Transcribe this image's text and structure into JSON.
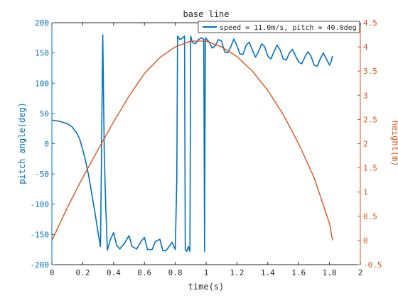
{
  "chart_data": {
    "type": "line",
    "title": "base line",
    "xlabel": "time(s)",
    "ylabel_left": "pitch angle(deg)",
    "ylabel_right": "height(m)",
    "xlim": [
      0,
      2
    ],
    "ylim_left": [
      -200,
      200
    ],
    "ylim_right": [
      -0.5,
      4.5
    ],
    "x_ticks": [
      "0",
      "0.2",
      "0.4",
      "0.6",
      "0.8",
      "1",
      "1.2",
      "1.4",
      "1.6",
      "1.8",
      "2"
    ],
    "y_left_ticks": [
      "-200",
      "-150",
      "-100",
      "-50",
      "0",
      "50",
      "100",
      "150",
      "200"
    ],
    "y_right_ticks": [
      "-0.5",
      "0",
      "0.5",
      "1",
      "1.5",
      "2",
      "2.5",
      "3",
      "3.5",
      "4",
      "4.5"
    ],
    "grid": false,
    "legend_position": "top-right",
    "colors": {
      "pitch": "#0072BD",
      "height": "#D95319",
      "left_axis": "#0072BD",
      "right_axis": "#D95319",
      "axes": "#262626"
    },
    "series": [
      {
        "name": "speed = 11.0m/s, pitch = 40.0deg",
        "axis": "left",
        "points": [
          [
            0.0,
            39
          ],
          [
            0.05,
            37
          ],
          [
            0.1,
            33
          ],
          [
            0.13,
            28
          ],
          [
            0.16,
            18
          ],
          [
            0.18,
            8
          ],
          [
            0.2,
            -10
          ],
          [
            0.22,
            -30
          ],
          [
            0.24,
            -55
          ],
          [
            0.26,
            -85
          ],
          [
            0.28,
            -115
          ],
          [
            0.3,
            -148
          ],
          [
            0.315,
            -170
          ],
          [
            0.32,
            -60
          ],
          [
            0.33,
            180
          ],
          [
            0.34,
            -20
          ],
          [
            0.35,
            -110
          ],
          [
            0.36,
            -176
          ],
          [
            0.38,
            -158
          ],
          [
            0.4,
            -147
          ],
          [
            0.42,
            -168
          ],
          [
            0.44,
            -174
          ],
          [
            0.47,
            -165
          ],
          [
            0.5,
            -152
          ],
          [
            0.52,
            -170
          ],
          [
            0.55,
            -174
          ],
          [
            0.58,
            -161
          ],
          [
            0.6,
            -155
          ],
          [
            0.62,
            -175
          ],
          [
            0.65,
            -175
          ],
          [
            0.67,
            -162
          ],
          [
            0.7,
            -158
          ],
          [
            0.72,
            -177
          ],
          [
            0.74,
            -177
          ],
          [
            0.76,
            -170
          ],
          [
            0.78,
            -163
          ],
          [
            0.8,
            -175
          ],
          [
            0.81,
            -60
          ],
          [
            0.815,
            178
          ],
          [
            0.83,
            172
          ],
          [
            0.85,
            175
          ],
          [
            0.86,
            178
          ],
          [
            0.865,
            -175
          ],
          [
            0.875,
            -178
          ],
          [
            0.885,
            -170
          ],
          [
            0.895,
            -178
          ],
          [
            0.9,
            178
          ],
          [
            0.91,
            168
          ],
          [
            0.93,
            165
          ],
          [
            0.95,
            172
          ],
          [
            0.97,
            175
          ],
          [
            0.985,
            172
          ],
          [
            0.99,
            -178
          ],
          [
            0.995,
            175
          ],
          [
            1.02,
            168
          ],
          [
            1.04,
            158
          ],
          [
            1.06,
            162
          ],
          [
            1.08,
            172
          ],
          [
            1.1,
            170
          ],
          [
            1.12,
            152
          ],
          [
            1.14,
            150
          ],
          [
            1.16,
            160
          ],
          [
            1.18,
            173
          ],
          [
            1.2,
            162
          ],
          [
            1.22,
            148
          ],
          [
            1.24,
            148
          ],
          [
            1.26,
            163
          ],
          [
            1.28,
            168
          ],
          [
            1.3,
            155
          ],
          [
            1.32,
            143
          ],
          [
            1.34,
            152
          ],
          [
            1.36,
            165
          ],
          [
            1.38,
            160
          ],
          [
            1.4,
            145
          ],
          [
            1.42,
            140
          ],
          [
            1.44,
            152
          ],
          [
            1.46,
            163
          ],
          [
            1.48,
            155
          ],
          [
            1.5,
            140
          ],
          [
            1.52,
            138
          ],
          [
            1.54,
            150
          ],
          [
            1.56,
            156
          ],
          [
            1.58,
            145
          ],
          [
            1.6,
            135
          ],
          [
            1.62,
            132
          ],
          [
            1.64,
            143
          ],
          [
            1.66,
            152
          ],
          [
            1.68,
            145
          ],
          [
            1.7,
            130
          ],
          [
            1.72,
            128
          ],
          [
            1.74,
            140
          ],
          [
            1.76,
            150
          ],
          [
            1.78,
            140
          ],
          [
            1.8,
            130
          ],
          [
            1.81,
            135
          ],
          [
            1.82,
            145
          ]
        ]
      },
      {
        "name": "",
        "axis": "right",
        "points": [
          [
            0.0,
            0.0
          ],
          [
            0.1,
            0.68
          ],
          [
            0.2,
            1.3
          ],
          [
            0.3,
            1.88
          ],
          [
            0.4,
            2.45
          ],
          [
            0.5,
            2.98
          ],
          [
            0.6,
            3.45
          ],
          [
            0.7,
            3.78
          ],
          [
            0.8,
            4.0
          ],
          [
            0.9,
            4.12
          ],
          [
            1.0,
            4.12
          ],
          [
            1.1,
            4.0
          ],
          [
            1.2,
            3.8
          ],
          [
            1.3,
            3.5
          ],
          [
            1.4,
            3.1
          ],
          [
            1.5,
            2.6
          ],
          [
            1.6,
            2.0
          ],
          [
            1.7,
            1.3
          ],
          [
            1.8,
            0.35
          ],
          [
            1.82,
            0.0
          ]
        ]
      }
    ]
  }
}
